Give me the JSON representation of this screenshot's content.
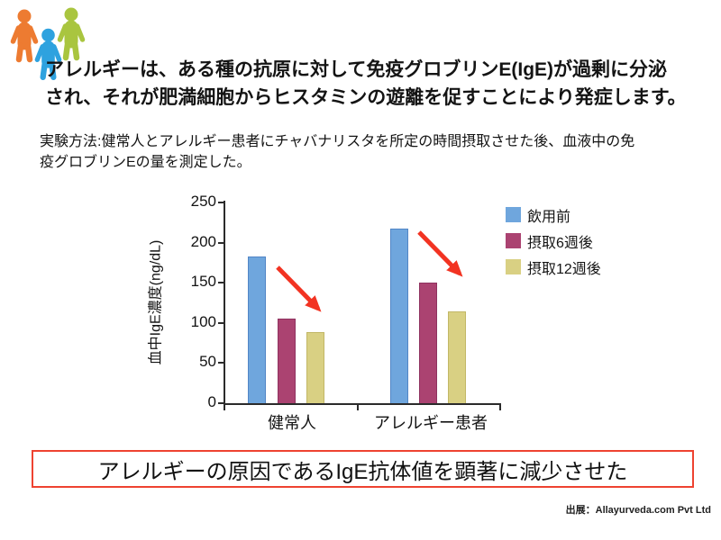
{
  "people": {
    "colors": {
      "orange": "#ED7B31",
      "blue": "#2EA2DF",
      "green": "#A9C53F"
    }
  },
  "headline": {
    "line1": "アレルギーは、ある種の抗原に対して免疫グロブリンE(IgE)が過剰に分泌",
    "line2": "され、それが肥満細胞からヒスタミンの遊離を促すことにより発症します。"
  },
  "method": {
    "line1": "実験方法:健常人とアレルギー患者にチャバナリスタを所定の時間摂取させた後、血液中の免",
    "line2": "疫グロブリンEの量を測定した。"
  },
  "chart_data": {
    "type": "bar",
    "title": "",
    "xlabel": "",
    "ylabel": "血中IgE濃度(ng/dL)",
    "ylim": [
      0,
      250
    ],
    "yticks": [
      250,
      200,
      150,
      100,
      50,
      0
    ],
    "grid": false,
    "legend_position": "right",
    "categories": [
      "健常人",
      "アレルギー患者"
    ],
    "series": [
      {
        "name": "飲用前",
        "fill": "#6FA6DD",
        "border": "#5286C6",
        "values": [
          183,
          218
        ]
      },
      {
        "name": "摂取6週後",
        "fill": "#AB4371",
        "border": "#8F3260",
        "values": [
          105,
          150
        ]
      },
      {
        "name": "摂取12週後",
        "fill": "#D9D083",
        "border": "#C2B766",
        "values": [
          89,
          114
        ]
      }
    ],
    "annotations": [
      {
        "type": "arrow",
        "direction": "down-right",
        "color": "#F23322",
        "group": "健常人"
      },
      {
        "type": "arrow",
        "direction": "down-right",
        "color": "#F23322",
        "group": "アレルギー患者"
      }
    ]
  },
  "conclusion": {
    "text": "アレルギーの原因であるIgE抗体値を顕著に減少させた",
    "border_color": "#EE4331"
  },
  "source": {
    "text": "出展：Allayurveda.com Pvt Ltd"
  }
}
